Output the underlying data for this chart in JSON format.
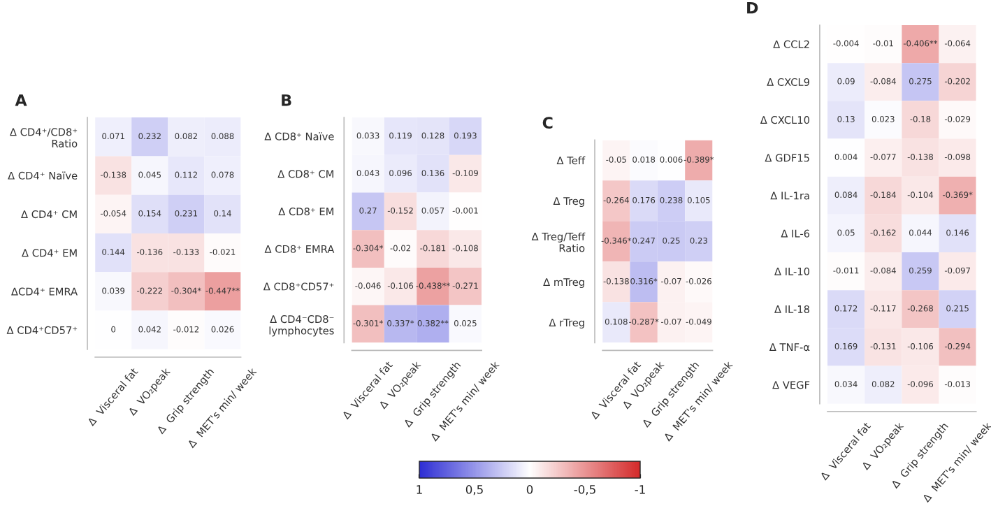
{
  "chart_data": [
    {
      "type": "heatmap",
      "title": "A",
      "categories": [
        "Δ  Visceral fat",
        "Δ  VO₂peak",
        "Δ  Grip strength",
        "Δ  MET's min/ week"
      ],
      "y_categories": [
        "Δ CD4⁺/CD8⁺\nRatio",
        "Δ CD4⁺ Naïve",
        "Δ CD4⁺ CM",
        "Δ CD4⁺ EM",
        "ΔCD4⁺ EMRA",
        "Δ CD4⁺CD57⁺"
      ],
      "cells": [
        [
          0.071,
          0.232,
          0.082,
          0.088
        ],
        [
          -0.138,
          0.045,
          0.112,
          0.078
        ],
        [
          -0.054,
          0.154,
          0.231,
          0.14
        ],
        [
          0.144,
          -0.136,
          -0.133,
          -0.021
        ],
        [
          0.039,
          -0.222,
          -0.304,
          -0.447
        ],
        [
          0,
          0.042,
          -0.012,
          0.026
        ]
      ],
      "cell_labels": [
        [
          "0.071",
          "0.232",
          "0.082",
          "0.088"
        ],
        [
          "-0.138",
          "0.045",
          "0.112",
          "0.078"
        ],
        [
          "-0.054",
          "0.154",
          "0.231",
          "0.14"
        ],
        [
          "0.144",
          "-0.136",
          "-0.133",
          "-0.021"
        ],
        [
          "0.039",
          "-0.222",
          "-0.304*",
          "-0.447**"
        ],
        [
          "0",
          "0.042",
          "-0.012",
          "0.026"
        ]
      ]
    },
    {
      "type": "heatmap",
      "title": "B",
      "categories": [
        "Δ  Visceral fat",
        "Δ  VO₂peak",
        "Δ  Grip strength",
        "Δ  MET's min/ week"
      ],
      "y_categories": [
        "Δ CD8⁺ Naïve",
        "Δ CD8⁺ CM",
        "Δ CD8⁺ EM",
        "Δ CD8⁺ EMRA",
        "Δ CD8⁺CD57⁺",
        "Δ CD4⁻CD8⁻\nlymphocytes"
      ],
      "cells": [
        [
          0.033,
          0.119,
          0.128,
          0.193
        ],
        [
          0.043,
          0.096,
          0.136,
          -0.109
        ],
        [
          0.27,
          -0.152,
          0.057,
          -0.001
        ],
        [
          -0.304,
          -0.02,
          -0.181,
          -0.108
        ],
        [
          -0.046,
          -0.106,
          -0.438,
          -0.271
        ],
        [
          -0.301,
          0.337,
          0.382,
          0.025
        ]
      ],
      "cell_labels": [
        [
          "0.033",
          "0.119",
          "0.128",
          "0.193"
        ],
        [
          "0.043",
          "0.096",
          "0.136",
          "-0.109"
        ],
        [
          "0.27",
          "-0.152",
          "0.057",
          "-0.001"
        ],
        [
          "-0.304*",
          "-0.02",
          "-0.181",
          "-0.108"
        ],
        [
          "-0.046",
          "-0.106",
          "-0.438**",
          "-0.271"
        ],
        [
          "-0.301*",
          "0.337*",
          "0.382**",
          "0.025"
        ]
      ],
      "clim": [
        1,
        -1
      ],
      "cticks": [
        1,
        {
          "value": 0.5,
          "label": "0,5"
        },
        0,
        {
          "value": -0.5,
          "label": "-0,5"
        },
        -1
      ]
    },
    {
      "type": "heatmap",
      "title": "C",
      "categories": [
        "Δ  Visceral fat",
        "Δ  VO₂peak",
        "Δ  Grip strength",
        "Δ  MET's min/ week"
      ],
      "y_categories": [
        "Δ Teff",
        "Δ Treg",
        "Δ Treg/Teff\nRatio",
        "Δ mTreg",
        "Δ rTreg"
      ],
      "cells": [
        [
          -0.05,
          0.018,
          0.006,
          -0.389
        ],
        [
          -0.264,
          0.176,
          0.238,
          0.105
        ],
        [
          -0.346,
          0.247,
          0.25,
          0.23
        ],
        [
          -0.138,
          0.316,
          -0.07,
          -0.026
        ],
        [
          0.108,
          -0.287,
          -0.07,
          -0.049
        ]
      ],
      "cell_labels": [
        [
          "-0.05",
          "0.018",
          "0.006",
          "-0.389*"
        ],
        [
          "-0.264",
          "0.176",
          "0.238",
          "0.105"
        ],
        [
          "-0.346*",
          "0.247",
          "0.25",
          "0.23"
        ],
        [
          "-0.138",
          "0.316*",
          "-0.07",
          "-0.026"
        ],
        [
          "0.108",
          "-0.287*",
          "-0.07",
          "-0.049"
        ]
      ]
    },
    {
      "type": "heatmap",
      "title": "D",
      "categories": [
        "Δ  Visceral fat",
        "Δ  VO₂peak",
        "Δ  Grip strength",
        "Δ  MET's min/ week"
      ],
      "y_categories": [
        "Δ CCL2",
        "Δ CXCL9",
        "Δ CXCL10",
        "Δ GDF15",
        "Δ IL-1ra",
        "Δ IL-6",
        "Δ IL-10",
        "Δ IL-18",
        "Δ TNF-α",
        "Δ VEGF"
      ],
      "cells": [
        [
          -0.004,
          -0.01,
          -0.406,
          -0.064
        ],
        [
          0.09,
          -0.084,
          0.275,
          -0.202
        ],
        [
          0.13,
          0.023,
          -0.18,
          -0.029
        ],
        [
          0.004,
          -0.077,
          -0.138,
          -0.098
        ],
        [
          0.084,
          -0.184,
          -0.104,
          -0.369
        ],
        [
          0.05,
          -0.162,
          0.044,
          0.146
        ],
        [
          -0.011,
          -0.084,
          0.259,
          -0.097
        ],
        [
          0.172,
          -0.117,
          -0.268,
          0.215
        ],
        [
          0.169,
          -0.131,
          -0.106,
          -0.294
        ],
        [
          0.034,
          0.082,
          -0.096,
          -0.013
        ]
      ],
      "cell_labels": [
        [
          "-0.004",
          "-0.01",
          "-0.406**",
          "-0.064"
        ],
        [
          "0.09",
          "-0.084",
          "0.275",
          "-0.202"
        ],
        [
          "0.13",
          "0.023",
          "-0.18",
          "-0.029"
        ],
        [
          "0.004",
          "-0.077",
          "-0.138",
          "-0.098"
        ],
        [
          "0.084",
          "-0.184",
          "-0.104",
          "-0.369*"
        ],
        [
          "0.05",
          "-0.162",
          "0.044",
          "0.146"
        ],
        [
          "-0.011",
          "-0.084",
          "0.259",
          "-0.097"
        ],
        [
          "0.172",
          "-0.117",
          "-0.268",
          "0.215"
        ],
        [
          "0.169",
          "-0.131",
          "-0.106",
          "-0.294"
        ],
        [
          "0.034",
          "0.082",
          "-0.096",
          "-0.013"
        ]
      ]
    }
  ]
}
